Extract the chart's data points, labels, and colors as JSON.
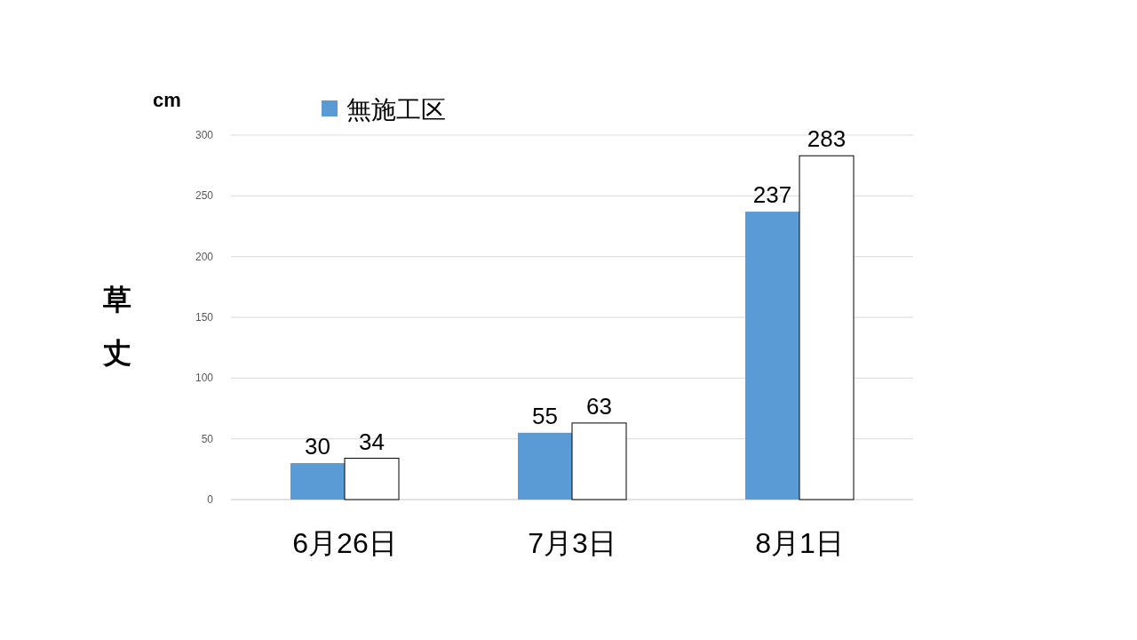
{
  "chart_data": {
    "type": "bar",
    "categories": [
      "6月26日",
      "7月3日",
      "8月1日"
    ],
    "series": [
      {
        "name": "無施工区",
        "color": "#5b9bd5",
        "values": [
          30,
          55,
          237
        ]
      },
      {
        "color": "#ffffff",
        "values": [
          34,
          63,
          283
        ]
      }
    ],
    "ylabel": "草丈",
    "annotations": [
      "cm"
    ],
    "ylim": [
      0,
      300
    ],
    "yticks": [
      0,
      50,
      100,
      150,
      200,
      250,
      300
    ],
    "grid": "y",
    "legend": "top left",
    "data_labels": true
  }
}
